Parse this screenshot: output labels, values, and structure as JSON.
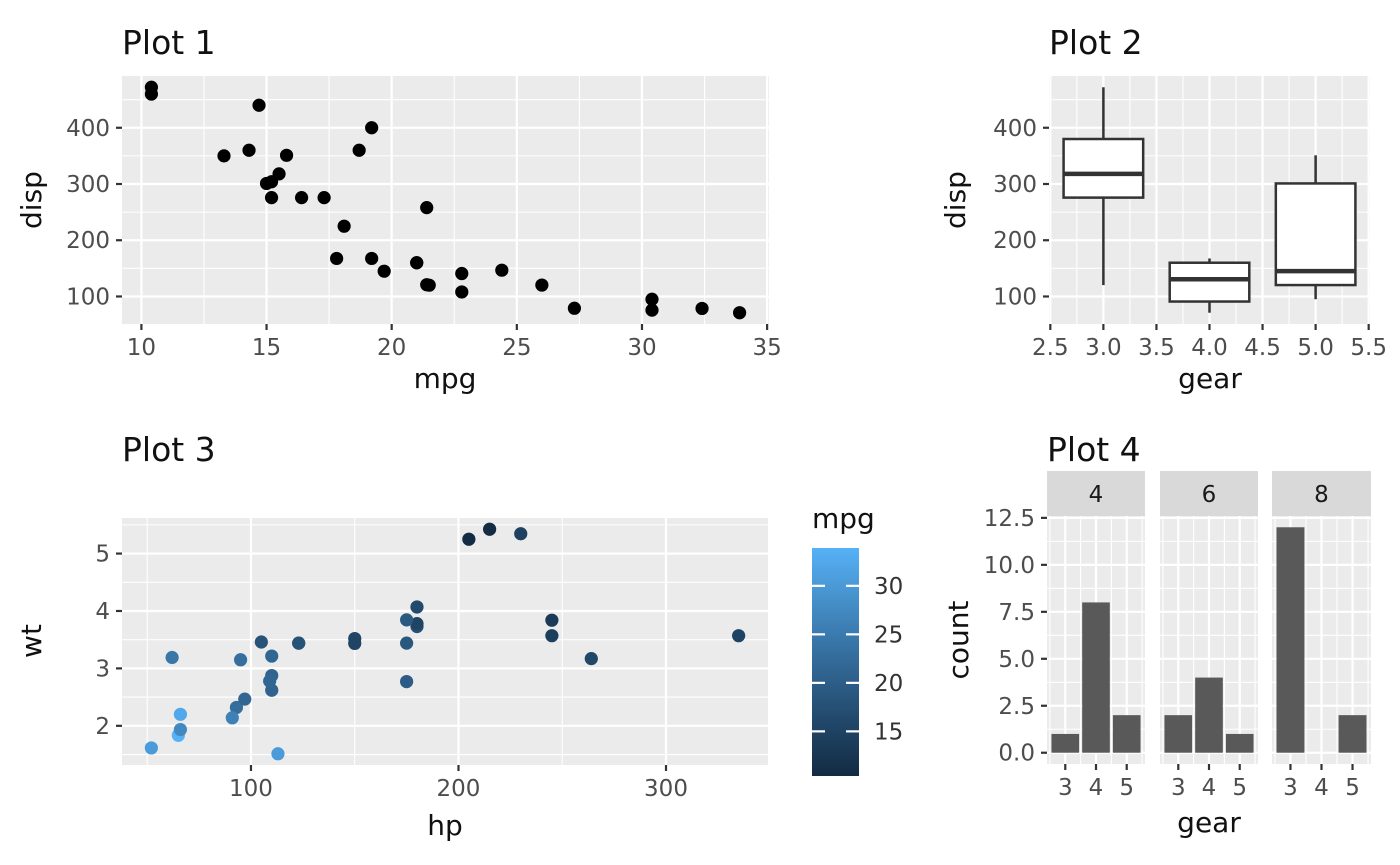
{
  "figure": {
    "background": "#ffffff",
    "panel_background": "#ebebeb",
    "grid_color": "#ffffff",
    "tick_label_color": "#4d4d4d",
    "tick_mark_color": "#333333",
    "title_color": "#111111"
  },
  "chart_data": [
    {
      "type": "scatter",
      "title": "Plot 1",
      "xlabel": "mpg",
      "ylabel": "disp",
      "point_color": "#000000",
      "x": [
        21,
        21,
        22.8,
        21.4,
        18.7,
        18.1,
        14.3,
        24.4,
        22.8,
        19.2,
        17.8,
        16.4,
        17.3,
        15.2,
        10.4,
        10.4,
        14.7,
        32.4,
        30.4,
        33.9,
        21.5,
        15.5,
        15.2,
        13.3,
        19.2,
        27.3,
        26,
        30.4,
        15.8,
        19.7,
        15,
        21.4
      ],
      "y": [
        160,
        160,
        108,
        258,
        360,
        225,
        360,
        146.7,
        140.8,
        167.6,
        167.6,
        275.8,
        275.8,
        275.8,
        472,
        460,
        440,
        78.7,
        75.7,
        71.1,
        120.1,
        318,
        304,
        350,
        400,
        79,
        120.3,
        95.1,
        351,
        145,
        301,
        121
      ],
      "xlim": [
        9.225,
        35.075
      ],
      "ylim": [
        51.055,
        492.045
      ],
      "x_ticks": {
        "values": [
          10,
          15,
          20,
          25,
          30,
          35
        ],
        "labels": [
          "10",
          "15",
          "20",
          "25",
          "30",
          "35"
        ]
      },
      "y_ticks": {
        "values": [
          100,
          200,
          300,
          400
        ],
        "labels": [
          "100",
          "200",
          "300",
          "400"
        ]
      },
      "grid": true
    },
    {
      "type": "box",
      "title": "Plot 2",
      "xlabel": "gear",
      "ylabel": "disp",
      "box_stroke": "#333333",
      "box_fill": "#ffffff",
      "box_width": 0.75,
      "boxes": [
        {
          "x": 3,
          "whisker_low": 120.1,
          "q1": 275.8,
          "median": 318,
          "q3": 380,
          "whisker_high": 472
        },
        {
          "x": 4,
          "whisker_low": 71.1,
          "q1": 91,
          "median": 130.55,
          "q3": 160,
          "whisker_high": 167.6
        },
        {
          "x": 5,
          "whisker_low": 95.1,
          "q1": 120.3,
          "median": 145,
          "q3": 301,
          "whisker_high": 351
        }
      ],
      "xlim": [
        2.4875,
        5.5125
      ],
      "ylim": [
        51.055,
        492.045
      ],
      "x_ticks": {
        "values": [
          2.5,
          3,
          3.5,
          4,
          4.5,
          5,
          5.5
        ],
        "labels": [
          "2.5",
          "3.0",
          "3.5",
          "4.0",
          "4.5",
          "5.0",
          "5.5"
        ]
      },
      "y_ticks": {
        "values": [
          100,
          200,
          300,
          400
        ],
        "labels": [
          "100",
          "200",
          "300",
          "400"
        ]
      },
      "grid": true
    },
    {
      "type": "scatter",
      "title": "Plot 3",
      "xlabel": "hp",
      "ylabel": "wt",
      "x": [
        110,
        110,
        93,
        110,
        175,
        105,
        245,
        62,
        95,
        123,
        123,
        180,
        180,
        180,
        205,
        215,
        230,
        66,
        52,
        65,
        97,
        150,
        150,
        245,
        175,
        66,
        91,
        113,
        264,
        175,
        335,
        109
      ],
      "y": [
        2.62,
        2.875,
        2.32,
        3.215,
        3.44,
        3.46,
        3.57,
        3.19,
        3.15,
        3.44,
        3.44,
        4.07,
        3.73,
        3.78,
        5.25,
        5.424,
        5.345,
        2.2,
        1.615,
        1.835,
        2.465,
        3.52,
        3.435,
        3.84,
        3.845,
        1.935,
        2.14,
        1.513,
        3.17,
        2.77,
        3.57,
        2.78
      ],
      "color_values": [
        21,
        21,
        22.8,
        21.4,
        18.7,
        18.1,
        14.3,
        24.4,
        22.8,
        19.2,
        17.8,
        16.4,
        17.3,
        15.2,
        10.4,
        10.4,
        14.7,
        32.4,
        30.4,
        33.9,
        21.5,
        15.5,
        15.2,
        13.3,
        19.2,
        27.3,
        26,
        30.4,
        15.8,
        19.7,
        15,
        21.4
      ],
      "colorbar": {
        "title": "mpg",
        "low_color": "#132B43",
        "high_color": "#56B1F7",
        "domain": [
          10.4,
          33.9
        ],
        "ticks": {
          "values": [
            15,
            20,
            25,
            30
          ],
          "labels": [
            "15",
            "20",
            "25",
            "30"
          ]
        }
      },
      "xlim": [
        37.85,
        349.15
      ],
      "ylim": [
        1.31745,
        5.61955
      ],
      "x_ticks": {
        "values": [
          100,
          200,
          300
        ],
        "labels": [
          "100",
          "200",
          "300"
        ]
      },
      "y_ticks": {
        "values": [
          2,
          3,
          4,
          5
        ],
        "labels": [
          "2",
          "3",
          "4",
          "5"
        ]
      },
      "grid": true
    },
    {
      "type": "faceted_bar",
      "title": "Plot 4",
      "xlabel": "gear",
      "ylabel": "count",
      "bar_color": "#595959",
      "bar_width": 0.9,
      "strip_fill": "#d9d9d9",
      "strip_text_color": "#1a1a1a",
      "facet_labels": [
        "4",
        "6",
        "8"
      ],
      "categories": [
        3,
        4,
        5
      ],
      "series": [
        {
          "facet": "4",
          "values": [
            1,
            8,
            2
          ]
        },
        {
          "facet": "6",
          "values": [
            2,
            4,
            1
          ]
        },
        {
          "facet": "8",
          "values": [
            12,
            0,
            2
          ]
        }
      ],
      "xlim": [
        2.405,
        5.595
      ],
      "ylim": [
        -0.6,
        12.6
      ],
      "x_ticks": {
        "values": [
          3,
          4,
          5
        ],
        "labels": [
          "3",
          "4",
          "5"
        ]
      },
      "y_ticks": {
        "values": [
          0,
          2.5,
          5,
          7.5,
          10,
          12.5
        ],
        "labels": [
          "0.0",
          "2.5",
          "5.0",
          "7.5",
          "10.0",
          "12.5"
        ]
      },
      "grid": true
    }
  ]
}
